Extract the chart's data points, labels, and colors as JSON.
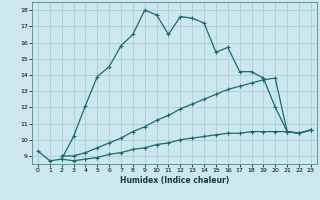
{
  "xlabel": "Humidex (Indice chaleur)",
  "bg_color": "#cce8ee",
  "line_color": "#1a6b6b",
  "grid_color": "#aacdd6",
  "xlim": [
    -0.5,
    23.5
  ],
  "ylim": [
    8.5,
    18.5
  ],
  "xticks": [
    0,
    1,
    2,
    3,
    4,
    5,
    6,
    7,
    8,
    9,
    10,
    11,
    12,
    13,
    14,
    15,
    16,
    17,
    18,
    19,
    20,
    21,
    22,
    23
  ],
  "yticks": [
    9,
    10,
    11,
    12,
    13,
    14,
    15,
    16,
    17,
    18
  ],
  "series": [
    {
      "x": [
        0,
        1,
        2,
        3,
        4,
        5,
        6,
        7,
        8,
        9,
        10,
        11,
        12,
        13,
        14,
        15,
        16,
        17,
        18,
        19,
        20,
        21,
        22,
        23
      ],
      "y": [
        9.3,
        8.7,
        8.8,
        10.2,
        12.1,
        13.9,
        14.5,
        15.8,
        16.5,
        18.0,
        17.7,
        16.5,
        17.6,
        17.5,
        17.2,
        15.4,
        15.7,
        14.2,
        14.2,
        13.8,
        12.0,
        10.5,
        10.4,
        10.6
      ]
    },
    {
      "x": [
        2,
        3,
        4,
        5,
        6,
        7,
        8,
        9,
        10,
        11,
        12,
        13,
        14,
        15,
        16,
        17,
        18,
        19,
        20,
        21,
        22,
        23
      ],
      "y": [
        9.0,
        9.0,
        9.2,
        9.5,
        9.8,
        10.1,
        10.5,
        10.8,
        11.2,
        11.5,
        11.9,
        12.2,
        12.5,
        12.8,
        13.1,
        13.3,
        13.5,
        13.7,
        13.8,
        10.5,
        10.4,
        10.6
      ]
    },
    {
      "x": [
        2,
        3,
        4,
        5,
        6,
        7,
        8,
        9,
        10,
        11,
        12,
        13,
        14,
        15,
        16,
        17,
        18,
        19,
        20,
        21,
        22,
        23
      ],
      "y": [
        8.8,
        8.7,
        8.8,
        8.9,
        9.1,
        9.2,
        9.4,
        9.5,
        9.7,
        9.8,
        10.0,
        10.1,
        10.2,
        10.3,
        10.4,
        10.4,
        10.5,
        10.5,
        10.5,
        10.5,
        10.4,
        10.6
      ]
    }
  ]
}
